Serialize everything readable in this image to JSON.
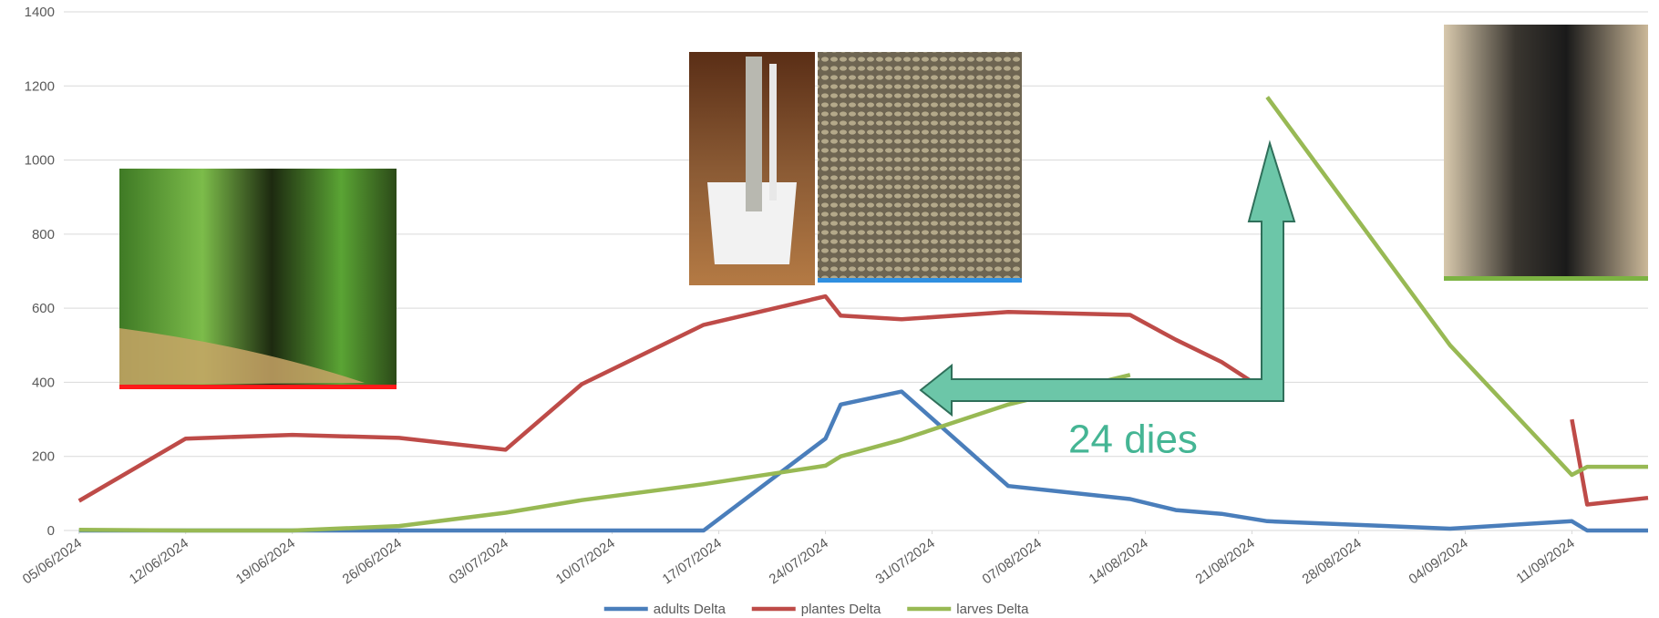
{
  "chart_data": {
    "type": "line",
    "x": [
      "05/06/2024",
      "12/06/2024",
      "19/06/2024",
      "26/06/2024",
      "03/07/2024",
      "08/07/2024",
      "16/07/2024",
      "24/07/2024",
      "25/07/2024",
      "29/07/2024",
      "05/08/2024",
      "13/08/2024",
      "16/08/2024",
      "19/08/2024",
      "22/08/2024",
      "03/09/2024",
      "11/09/2024",
      "12/09/2024",
      "16/09/2024"
    ],
    "series": [
      {
        "name": "adults Delta",
        "color": "#4a7ebb",
        "values": [
          0,
          0,
          0,
          0,
          0,
          0,
          0,
          248,
          340,
          375,
          120,
          85,
          55,
          45,
          25,
          5,
          25,
          0,
          0
        ]
      },
      {
        "name": "plantes Delta",
        "color": "#be4b48",
        "values": [
          80,
          248,
          258,
          250,
          218,
          395,
          555,
          632,
          580,
          570,
          590,
          582,
          515,
          455,
          375,
          null,
          300,
          70,
          88
        ]
      },
      {
        "name": "larves Delta",
        "color": "#98b954",
        "values": [
          2,
          0,
          0,
          12,
          48,
          82,
          125,
          175,
          200,
          245,
          340,
          420,
          null,
          null,
          1170,
          500,
          150,
          172,
          172
        ]
      }
    ],
    "xlim": [
      "04/06/2024",
      "16/09/2024"
    ],
    "xticks": [
      "05/06/2024",
      "12/06/2024",
      "19/06/2024",
      "26/06/2024",
      "03/07/2024",
      "10/07/2024",
      "17/07/2024",
      "24/07/2024",
      "31/07/2024",
      "07/08/2024",
      "14/08/2024",
      "21/08/2024",
      "28/08/2024",
      "04/09/2024",
      "11/09/2024"
    ],
    "ylim": [
      0,
      1400
    ],
    "yticks": [
      0,
      200,
      400,
      600,
      800,
      1000,
      1200,
      1400
    ],
    "grid": true,
    "legend": "bottom",
    "annotation": "24 dies"
  }
}
